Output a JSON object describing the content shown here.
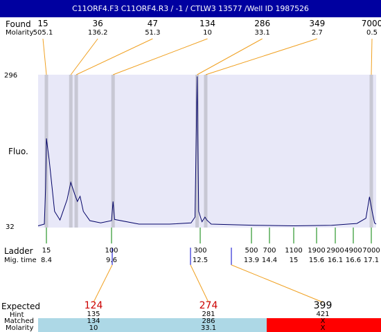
{
  "title": "C11ORF4.F3  C11ORF4.R3 / -1  / CTLW3 13577 /Well ID 1987526",
  "labels": {
    "found": "Found",
    "molarity": "Molarity",
    "fluo": "Fluo.",
    "ladder": "Ladder",
    "mig_time": "Mig. time",
    "expected": "Expected",
    "hint": "Hint",
    "matched": "Matched",
    "molarity_bottom": "Molarity"
  },
  "colors": {
    "title_bg": "#0000a0",
    "plot_bg": "#e8e8f8",
    "peak_band": "#c8c8d4",
    "trace": "#000066",
    "connector": "#f0a020",
    "ladder_tick": "#008000",
    "expected_marker": "#0000cc",
    "expected_hit": "#cc0000",
    "matched_bg": "#add8e6",
    "unmatched_bg": "#ff0000"
  },
  "chart_data": {
    "type": "line",
    "title": "C11ORF4.F3  C11ORF4.R3 / -1  / CTLW3 13577 /Well ID 1987526",
    "ylabel": "Fluo.",
    "ylim": [
      32,
      296
    ],
    "y_ticks": [
      "296",
      "32"
    ],
    "found_peaks": [
      {
        "size": "15",
        "molarity": "505.1",
        "mig_time": 8.4
      },
      {
        "size": "36",
        "molarity": "136.2",
        "mig_time": 8.85
      },
      {
        "size": "47",
        "molarity": "51.3",
        "mig_time": 8.95
      },
      {
        "size": "134",
        "molarity": "10",
        "mig_time": 9.65
      },
      {
        "size": "286",
        "molarity": "33.1",
        "mig_time": 12.4
      },
      {
        "size": "349",
        "molarity": "2.7",
        "mig_time": 12.65
      },
      {
        "size": "7000",
        "molarity": "0.5",
        "mig_time": 17.1
      }
    ],
    "ladder": [
      {
        "size": "15",
        "mig_time": "8.4"
      },
      {
        "size": "100",
        "mig_time": "9.6"
      },
      {
        "size": "300",
        "mig_time": "12.5"
      },
      {
        "size": "500",
        "mig_time": "13.9"
      },
      {
        "size": "700",
        "mig_time": "14.4"
      },
      {
        "size": "1100",
        "mig_time": "15"
      },
      {
        "size": "1900",
        "mig_time": "15.6"
      },
      {
        "size": "2900",
        "mig_time": "16.1"
      },
      {
        "size": "4900",
        "mig_time": "16.6"
      },
      {
        "size": "7000",
        "mig_time": "17.1"
      }
    ],
    "trace": [
      [
        8.0,
        35
      ],
      [
        8.3,
        38
      ],
      [
        8.36,
        100
      ],
      [
        8.4,
        186
      ],
      [
        8.45,
        150
      ],
      [
        8.55,
        60
      ],
      [
        8.65,
        45
      ],
      [
        8.78,
        80
      ],
      [
        8.85,
        110
      ],
      [
        8.92,
        90
      ],
      [
        8.97,
        77
      ],
      [
        9.02,
        86
      ],
      [
        9.08,
        60
      ],
      [
        9.2,
        44
      ],
      [
        9.4,
        40
      ],
      [
        9.6,
        44
      ],
      [
        9.65,
        77
      ],
      [
        9.7,
        46
      ],
      [
        10.5,
        38
      ],
      [
        11.5,
        38
      ],
      [
        12.2,
        40
      ],
      [
        12.33,
        50
      ],
      [
        12.4,
        293
      ],
      [
        12.45,
        60
      ],
      [
        12.55,
        42
      ],
      [
        12.63,
        50
      ],
      [
        12.68,
        45
      ],
      [
        12.8,
        38
      ],
      [
        14.0,
        36
      ],
      [
        15.0,
        35
      ],
      [
        16.0,
        36
      ],
      [
        16.7,
        39
      ],
      [
        16.95,
        48
      ],
      [
        17.05,
        85
      ],
      [
        17.15,
        60
      ],
      [
        17.3,
        40
      ],
      [
        17.4,
        38
      ]
    ],
    "expected": [
      {
        "value": "124",
        "hint": "135",
        "matched": "134",
        "molarity": "10",
        "status": "matched"
      },
      {
        "value": "274",
        "hint": "281",
        "matched": "286",
        "molarity": "33.1",
        "status": "matched"
      },
      {
        "value": "399",
        "hint": "421",
        "matched": "X",
        "molarity": "X",
        "status": "unmatched"
      }
    ]
  }
}
